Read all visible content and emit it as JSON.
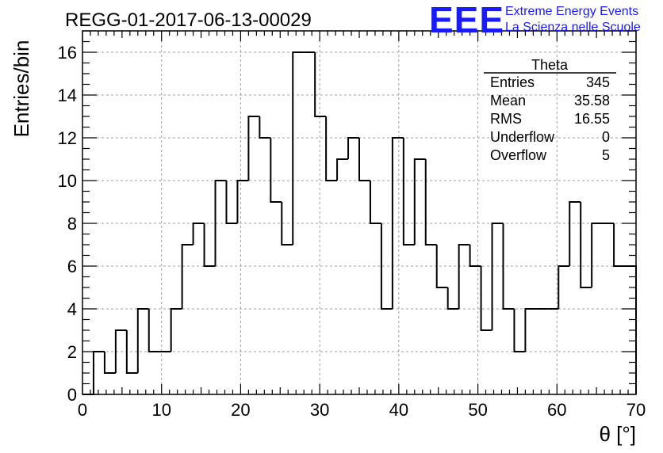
{
  "chart_data": {
    "type": "histogram",
    "title": "REGG-01-2017-06-13-00029",
    "xlabel": "θ [°]",
    "ylabel": "Entries/bin",
    "xlim": [
      0,
      70
    ],
    "ylim": [
      0,
      17
    ],
    "bin_width": 1.4,
    "bin_edges_start": 0,
    "values": [
      0,
      2,
      1,
      3,
      1,
      4,
      2,
      2,
      4,
      7,
      8,
      6,
      10,
      8,
      10,
      13,
      12,
      9,
      7,
      16,
      16,
      13,
      10,
      11,
      12,
      10,
      8,
      4,
      12,
      7,
      11,
      7,
      5,
      4,
      7,
      6,
      3,
      8,
      4,
      2,
      4,
      4,
      4,
      6,
      9,
      5,
      8,
      8,
      6,
      6
    ],
    "x_ticks": [
      0,
      10,
      20,
      30,
      40,
      50,
      60,
      70
    ],
    "y_ticks": [
      0,
      2,
      4,
      6,
      8,
      10,
      12,
      14,
      16
    ],
    "grid": true,
    "stats_box": {
      "title": "Theta",
      "rows": [
        {
          "label": "Entries",
          "value": "345"
        },
        {
          "label": "Mean",
          "value": "35.58"
        },
        {
          "label": "RMS",
          "value": "16.55"
        },
        {
          "label": "Underflow",
          "value": "0"
        },
        {
          "label": "Overflow",
          "value": "5"
        }
      ]
    }
  },
  "logo": {
    "text": "EEE",
    "line1": "Extreme Energy Events",
    "line2": "La Scienza nelle Scuole",
    "color": "#1a1aff"
  }
}
